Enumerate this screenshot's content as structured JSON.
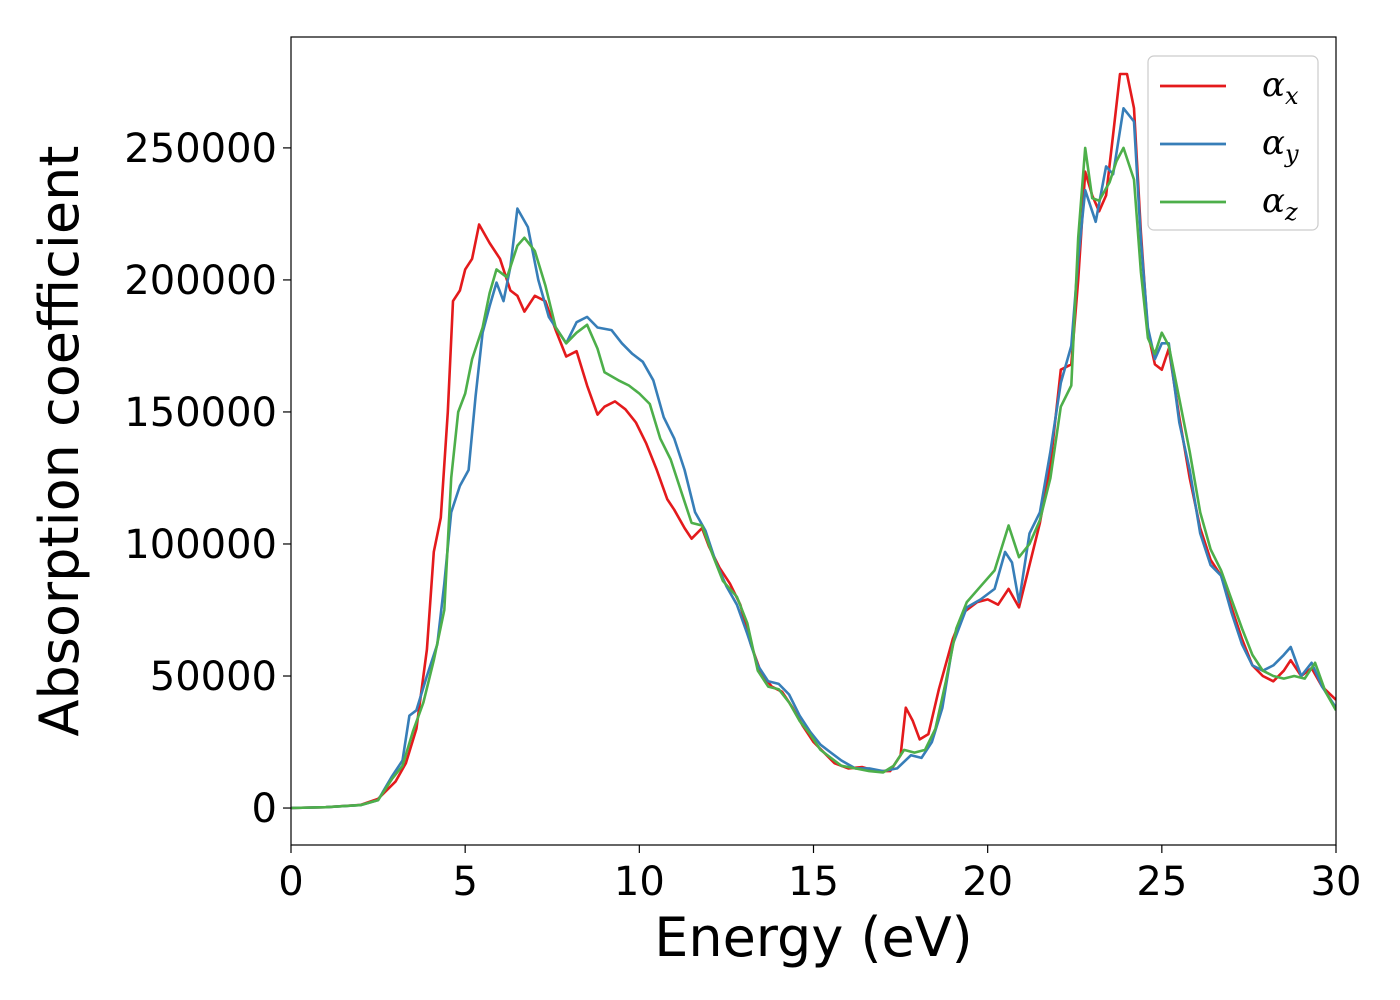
{
  "chart_data": {
    "type": "line",
    "title": "",
    "xlabel": "Energy (eV)",
    "ylabel": "Absorption coefficient",
    "xlim": [
      0,
      30
    ],
    "ylim": [
      -14000,
      292000
    ],
    "xticks": [
      0,
      5,
      10,
      15,
      20,
      25,
      30
    ],
    "yticks": [
      0,
      50000,
      100000,
      150000,
      200000,
      250000
    ],
    "grid": false,
    "legend_position": "top-right",
    "series": [
      {
        "name": "α",
        "subscript": "x",
        "color": "#e41a1c",
        "points": [
          [
            0,
            0
          ],
          [
            1,
            300
          ],
          [
            2,
            1200
          ],
          [
            2.5,
            3500
          ],
          [
            3,
            10000
          ],
          [
            3.3,
            17000
          ],
          [
            3.6,
            30000
          ],
          [
            3.9,
            60000
          ],
          [
            4.1,
            97000
          ],
          [
            4.3,
            110000
          ],
          [
            4.5,
            150000
          ],
          [
            4.65,
            192000
          ],
          [
            4.85,
            196000
          ],
          [
            5.0,
            204000
          ],
          [
            5.2,
            208000
          ],
          [
            5.4,
            221000
          ],
          [
            5.7,
            214000
          ],
          [
            6.0,
            208000
          ],
          [
            6.3,
            196000
          ],
          [
            6.5,
            194000
          ],
          [
            6.7,
            188000
          ],
          [
            7.0,
            194000
          ],
          [
            7.3,
            192000
          ],
          [
            7.6,
            181000
          ],
          [
            7.9,
            171000
          ],
          [
            8.2,
            173000
          ],
          [
            8.5,
            160000
          ],
          [
            8.8,
            149000
          ],
          [
            9.0,
            152000
          ],
          [
            9.3,
            154000
          ],
          [
            9.6,
            151000
          ],
          [
            9.9,
            146000
          ],
          [
            10.2,
            138000
          ],
          [
            10.5,
            128000
          ],
          [
            10.8,
            117000
          ],
          [
            11.0,
            113000
          ],
          [
            11.3,
            106000
          ],
          [
            11.5,
            102000
          ],
          [
            11.8,
            106000
          ],
          [
            12.0,
            99000
          ],
          [
            12.3,
            91000
          ],
          [
            12.6,
            85000
          ],
          [
            12.9,
            77000
          ],
          [
            13.2,
            62000
          ],
          [
            13.5,
            51000
          ],
          [
            13.8,
            46000
          ],
          [
            14.1,
            44000
          ],
          [
            14.4,
            38000
          ],
          [
            14.7,
            31000
          ],
          [
            15.0,
            25000
          ],
          [
            15.3,
            21000
          ],
          [
            15.6,
            17000
          ],
          [
            16.0,
            15000
          ],
          [
            16.4,
            15500
          ],
          [
            16.8,
            14000
          ],
          [
            17.2,
            14000
          ],
          [
            17.5,
            20000
          ],
          [
            17.65,
            38000
          ],
          [
            17.85,
            33000
          ],
          [
            18.05,
            26000
          ],
          [
            18.3,
            28000
          ],
          [
            18.6,
            45000
          ],
          [
            19.0,
            64000
          ],
          [
            19.3,
            74000
          ],
          [
            19.7,
            78000
          ],
          [
            20.0,
            79000
          ],
          [
            20.3,
            77000
          ],
          [
            20.6,
            83000
          ],
          [
            20.9,
            76000
          ],
          [
            21.2,
            92000
          ],
          [
            21.5,
            108000
          ],
          [
            21.8,
            130000
          ],
          [
            22.1,
            166000
          ],
          [
            22.4,
            168000
          ],
          [
            22.6,
            200000
          ],
          [
            22.8,
            241000
          ],
          [
            23.0,
            232000
          ],
          [
            23.2,
            226000
          ],
          [
            23.4,
            232000
          ],
          [
            23.6,
            255000
          ],
          [
            23.8,
            278000
          ],
          [
            24.0,
            278000
          ],
          [
            24.2,
            265000
          ],
          [
            24.4,
            218000
          ],
          [
            24.6,
            180000
          ],
          [
            24.8,
            168000
          ],
          [
            25.0,
            166000
          ],
          [
            25.2,
            174000
          ],
          [
            25.5,
            148000
          ],
          [
            25.8,
            125000
          ],
          [
            26.1,
            106000
          ],
          [
            26.4,
            94000
          ],
          [
            26.7,
            88000
          ],
          [
            27.0,
            76000
          ],
          [
            27.3,
            64000
          ],
          [
            27.6,
            54000
          ],
          [
            27.9,
            50000
          ],
          [
            28.2,
            48000
          ],
          [
            28.5,
            52000
          ],
          [
            28.7,
            56000
          ],
          [
            29.0,
            50000
          ],
          [
            29.3,
            53000
          ],
          [
            29.6,
            46000
          ],
          [
            30.0,
            41000
          ]
        ]
      },
      {
        "name": "α",
        "subscript": "y",
        "color": "#377eb8",
        "points": [
          [
            0,
            0
          ],
          [
            1,
            300
          ],
          [
            2,
            1100
          ],
          [
            2.5,
            3000
          ],
          [
            2.9,
            12000
          ],
          [
            3.2,
            18000
          ],
          [
            3.4,
            35000
          ],
          [
            3.6,
            37000
          ],
          [
            3.9,
            50000
          ],
          [
            4.2,
            62000
          ],
          [
            4.4,
            85000
          ],
          [
            4.6,
            112000
          ],
          [
            4.85,
            122000
          ],
          [
            5.1,
            128000
          ],
          [
            5.3,
            156000
          ],
          [
            5.5,
            180000
          ],
          [
            5.7,
            190000
          ],
          [
            5.9,
            199000
          ],
          [
            6.1,
            192000
          ],
          [
            6.3,
            205000
          ],
          [
            6.5,
            227000
          ],
          [
            6.8,
            220000
          ],
          [
            7.1,
            200000
          ],
          [
            7.4,
            186000
          ],
          [
            7.7,
            180000
          ],
          [
            7.9,
            176000
          ],
          [
            8.2,
            184000
          ],
          [
            8.5,
            186000
          ],
          [
            8.8,
            182000
          ],
          [
            9.2,
            181000
          ],
          [
            9.5,
            176000
          ],
          [
            9.8,
            172000
          ],
          [
            10.1,
            169000
          ],
          [
            10.4,
            162000
          ],
          [
            10.7,
            148000
          ],
          [
            11.0,
            140000
          ],
          [
            11.3,
            128000
          ],
          [
            11.6,
            112000
          ],
          [
            11.9,
            105000
          ],
          [
            12.2,
            93000
          ],
          [
            12.5,
            84000
          ],
          [
            12.8,
            77000
          ],
          [
            13.1,
            66000
          ],
          [
            13.4,
            54000
          ],
          [
            13.7,
            48000
          ],
          [
            14.0,
            47000
          ],
          [
            14.3,
            43000
          ],
          [
            14.6,
            35000
          ],
          [
            14.9,
            29000
          ],
          [
            15.2,
            24000
          ],
          [
            15.5,
            21000
          ],
          [
            15.8,
            18000
          ],
          [
            16.2,
            15000
          ],
          [
            16.6,
            15000
          ],
          [
            17.0,
            14000
          ],
          [
            17.4,
            15000
          ],
          [
            17.8,
            20000
          ],
          [
            18.1,
            19000
          ],
          [
            18.4,
            25000
          ],
          [
            18.7,
            38000
          ],
          [
            19.0,
            62000
          ],
          [
            19.4,
            76000
          ],
          [
            19.8,
            79000
          ],
          [
            20.2,
            83000
          ],
          [
            20.5,
            97000
          ],
          [
            20.7,
            93000
          ],
          [
            20.9,
            78000
          ],
          [
            21.2,
            104000
          ],
          [
            21.5,
            112000
          ],
          [
            21.8,
            135000
          ],
          [
            22.1,
            161000
          ],
          [
            22.4,
            175000
          ],
          [
            22.6,
            208000
          ],
          [
            22.8,
            234000
          ],
          [
            23.1,
            222000
          ],
          [
            23.4,
            243000
          ],
          [
            23.6,
            240000
          ],
          [
            23.9,
            265000
          ],
          [
            24.2,
            260000
          ],
          [
            24.4,
            215000
          ],
          [
            24.6,
            182000
          ],
          [
            24.8,
            170000
          ],
          [
            25.0,
            176000
          ],
          [
            25.2,
            176000
          ],
          [
            25.5,
            146000
          ],
          [
            25.8,
            128000
          ],
          [
            26.1,
            104000
          ],
          [
            26.4,
            92000
          ],
          [
            26.7,
            88000
          ],
          [
            27.0,
            74000
          ],
          [
            27.3,
            62000
          ],
          [
            27.6,
            54000
          ],
          [
            27.9,
            52000
          ],
          [
            28.2,
            54000
          ],
          [
            28.5,
            58000
          ],
          [
            28.7,
            61000
          ],
          [
            29.0,
            50000
          ],
          [
            29.3,
            55000
          ],
          [
            29.6,
            46000
          ],
          [
            30.0,
            38000
          ]
        ]
      },
      {
        "name": "α",
        "subscript": "z",
        "color": "#4daf4a",
        "points": [
          [
            0,
            0
          ],
          [
            1,
            300
          ],
          [
            2,
            1100
          ],
          [
            2.5,
            3000
          ],
          [
            2.9,
            11000
          ],
          [
            3.2,
            16000
          ],
          [
            3.5,
            29000
          ],
          [
            3.8,
            40000
          ],
          [
            4.1,
            56000
          ],
          [
            4.4,
            75000
          ],
          [
            4.6,
            125000
          ],
          [
            4.8,
            150000
          ],
          [
            5.0,
            157000
          ],
          [
            5.2,
            170000
          ],
          [
            5.5,
            182000
          ],
          [
            5.7,
            195000
          ],
          [
            5.9,
            204000
          ],
          [
            6.2,
            201000
          ],
          [
            6.5,
            213000
          ],
          [
            6.7,
            216000
          ],
          [
            7.0,
            211000
          ],
          [
            7.3,
            198000
          ],
          [
            7.6,
            182000
          ],
          [
            7.9,
            176000
          ],
          [
            8.2,
            180000
          ],
          [
            8.5,
            183000
          ],
          [
            8.8,
            174000
          ],
          [
            9.0,
            165000
          ],
          [
            9.4,
            162000
          ],
          [
            9.7,
            160000
          ],
          [
            10.0,
            157000
          ],
          [
            10.3,
            153000
          ],
          [
            10.6,
            140000
          ],
          [
            10.9,
            132000
          ],
          [
            11.2,
            120000
          ],
          [
            11.5,
            108000
          ],
          [
            11.8,
            107000
          ],
          [
            12.1,
            96000
          ],
          [
            12.4,
            86000
          ],
          [
            12.8,
            80000
          ],
          [
            13.1,
            70000
          ],
          [
            13.4,
            52000
          ],
          [
            13.7,
            46000
          ],
          [
            14.0,
            45000
          ],
          [
            14.3,
            40000
          ],
          [
            14.6,
            33000
          ],
          [
            14.9,
            28000
          ],
          [
            15.2,
            22000
          ],
          [
            15.5,
            19000
          ],
          [
            15.8,
            16000
          ],
          [
            16.2,
            15000
          ],
          [
            16.6,
            14000
          ],
          [
            17.0,
            13500
          ],
          [
            17.3,
            16000
          ],
          [
            17.6,
            22000
          ],
          [
            17.9,
            21000
          ],
          [
            18.2,
            22000
          ],
          [
            18.5,
            30000
          ],
          [
            18.8,
            48000
          ],
          [
            19.1,
            68000
          ],
          [
            19.4,
            78000
          ],
          [
            19.8,
            84000
          ],
          [
            20.2,
            90000
          ],
          [
            20.6,
            107000
          ],
          [
            20.9,
            95000
          ],
          [
            21.2,
            100000
          ],
          [
            21.5,
            109000
          ],
          [
            21.8,
            125000
          ],
          [
            22.1,
            152000
          ],
          [
            22.4,
            160000
          ],
          [
            22.6,
            216000
          ],
          [
            22.8,
            250000
          ],
          [
            23.0,
            231000
          ],
          [
            23.2,
            230000
          ],
          [
            23.5,
            237000
          ],
          [
            23.7,
            245000
          ],
          [
            23.9,
            250000
          ],
          [
            24.2,
            238000
          ],
          [
            24.4,
            203000
          ],
          [
            24.6,
            178000
          ],
          [
            24.8,
            172000
          ],
          [
            25.0,
            180000
          ],
          [
            25.2,
            175000
          ],
          [
            25.5,
            155000
          ],
          [
            25.8,
            135000
          ],
          [
            26.1,
            112000
          ],
          [
            26.4,
            98000
          ],
          [
            26.7,
            90000
          ],
          [
            27.0,
            79000
          ],
          [
            27.3,
            68000
          ],
          [
            27.6,
            58000
          ],
          [
            27.9,
            52000
          ],
          [
            28.2,
            50000
          ],
          [
            28.5,
            49000
          ],
          [
            28.8,
            50000
          ],
          [
            29.1,
            49000
          ],
          [
            29.4,
            55000
          ],
          [
            29.7,
            44000
          ],
          [
            30.0,
            37000
          ]
        ]
      }
    ]
  }
}
